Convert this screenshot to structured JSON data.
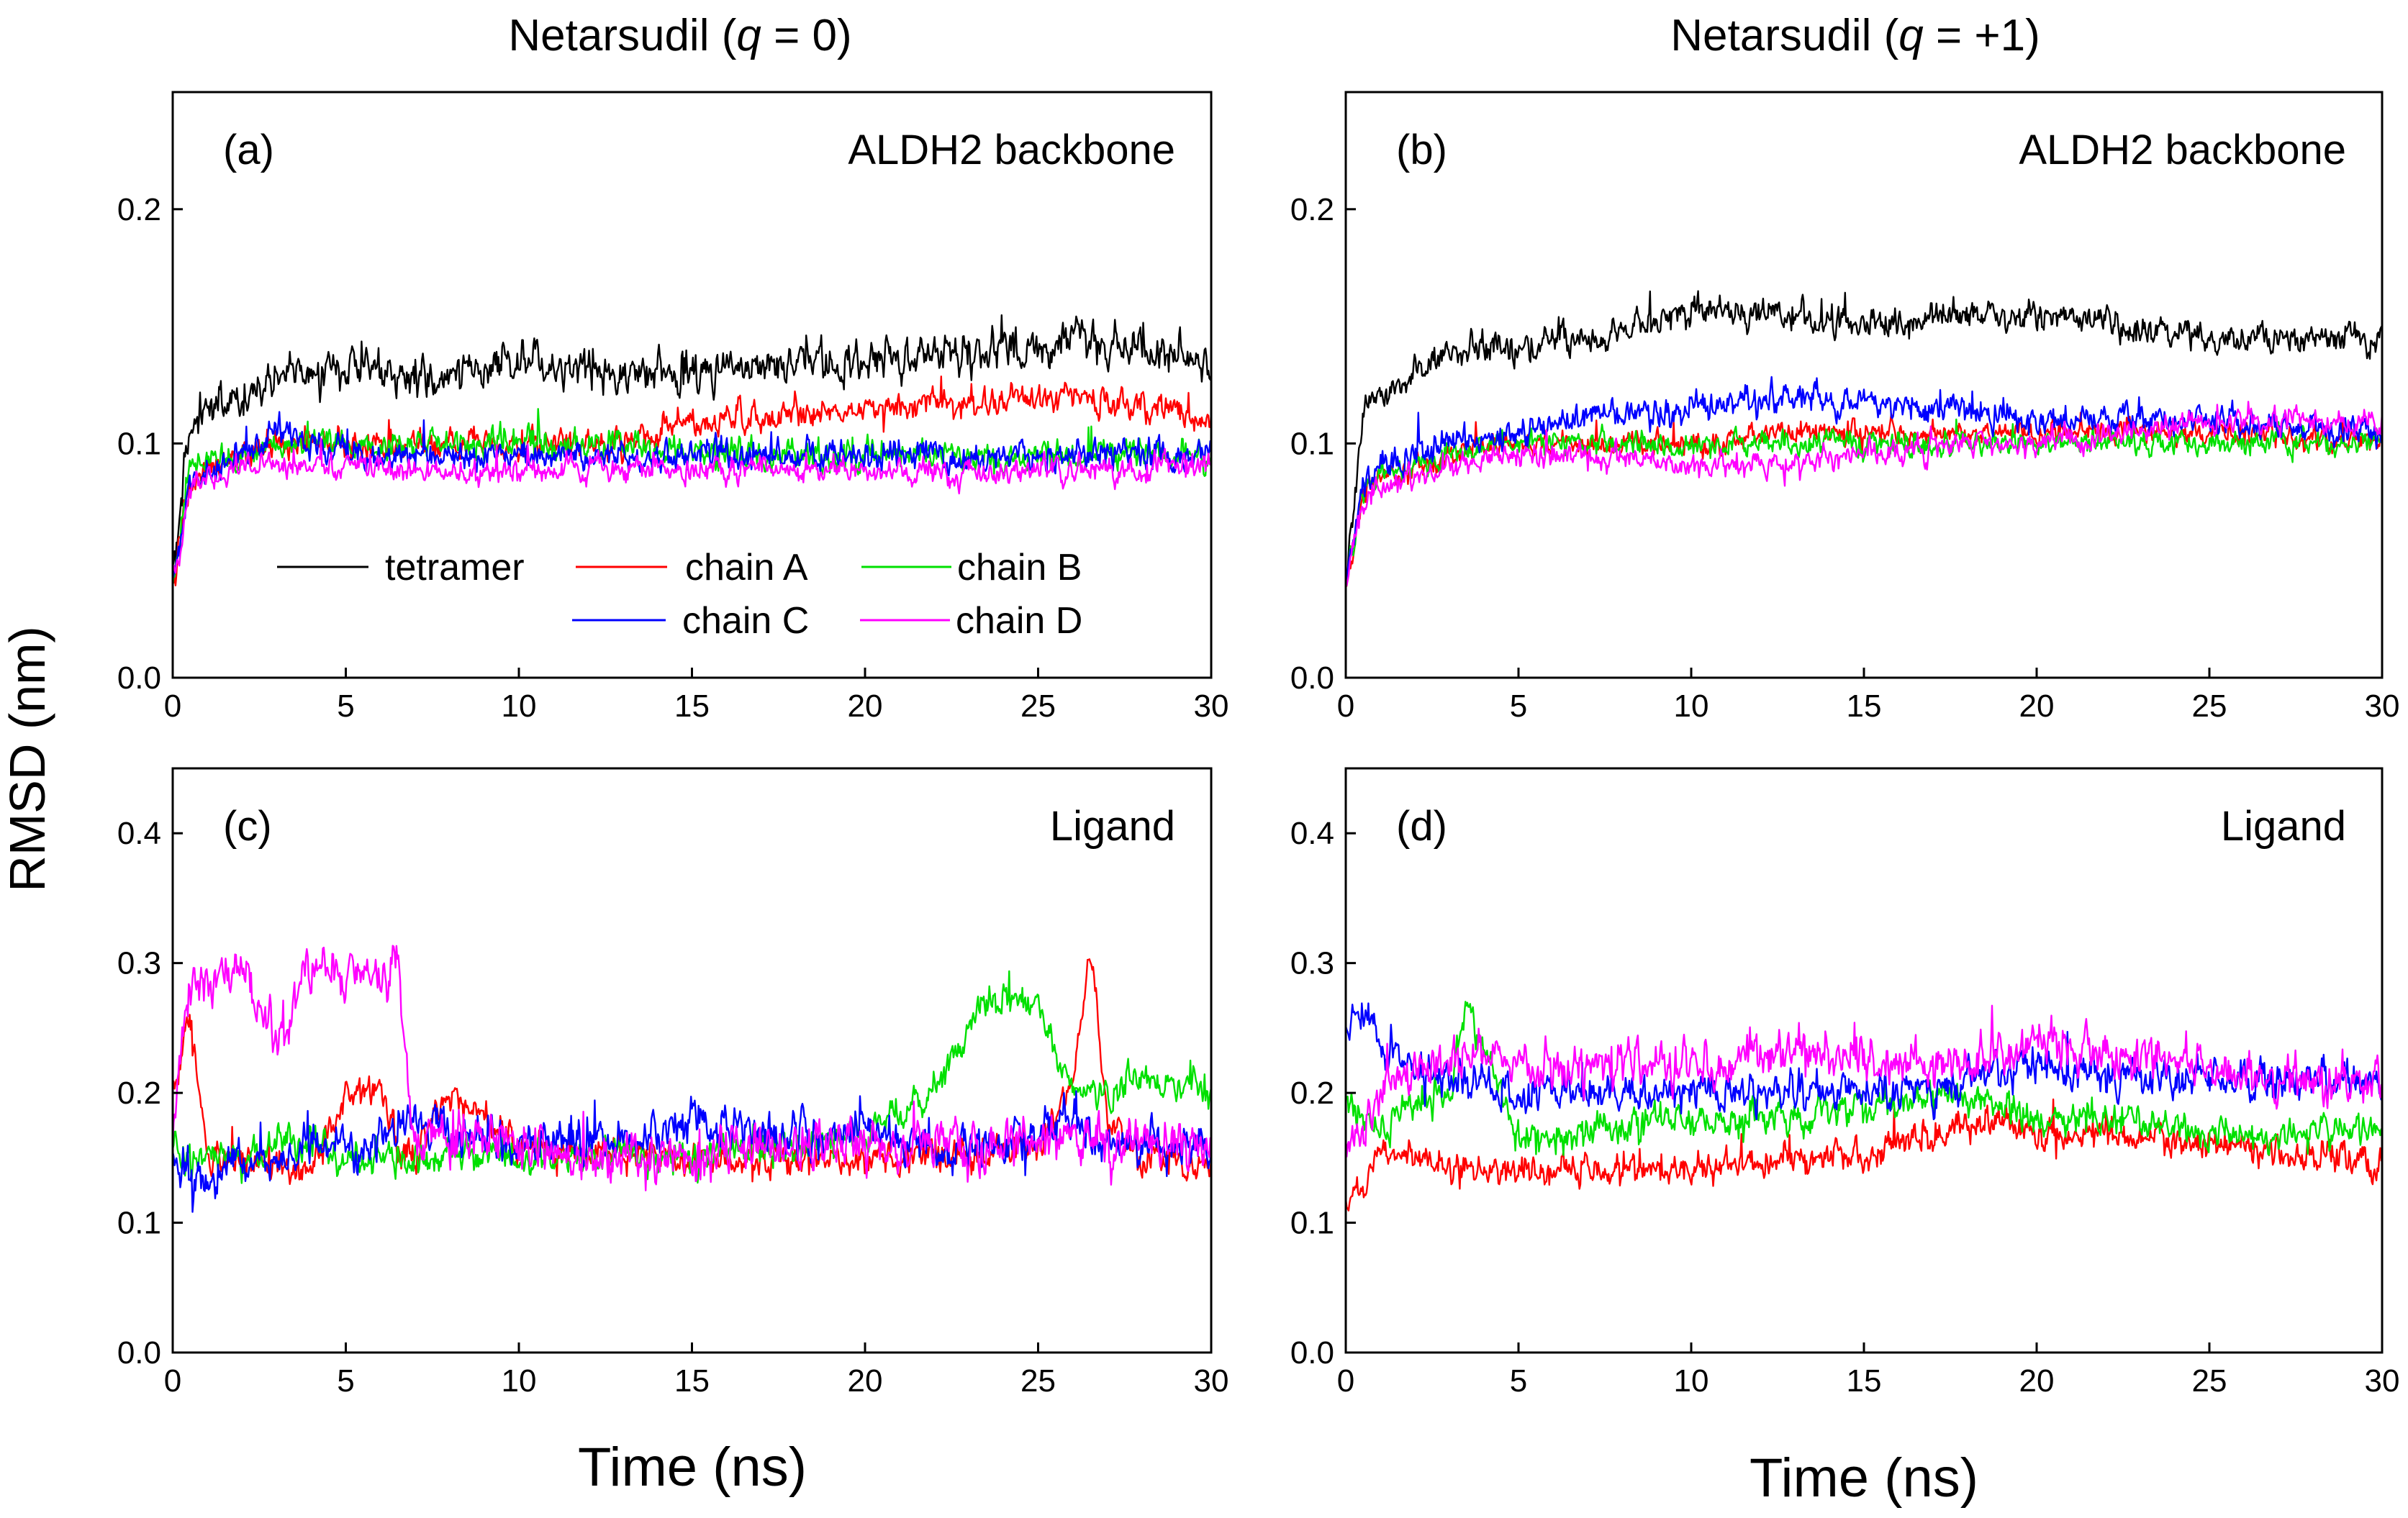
{
  "figure": {
    "col_titles": [
      {
        "prefix": "Netarsudil (",
        "var": "q",
        "suffix": " = 0)"
      },
      {
        "prefix": "Netarsudil (",
        "var": "q",
        "suffix": " = +1)"
      }
    ],
    "ylabel": "RMSD (nm)",
    "xlabel": "Time (ns)"
  },
  "legend": {
    "entries": [
      {
        "name": "tetramer",
        "color": "#000000"
      },
      {
        "name": "chain A",
        "color": "#ff0000"
      },
      {
        "name": "chain B",
        "color": "#00e000"
      },
      {
        "name": "chain C",
        "color": "#0000ff"
      },
      {
        "name": "chain D",
        "color": "#ff00ff"
      }
    ]
  },
  "chart_data": [
    {
      "type": "line",
      "panel": "(a)",
      "title": "ALDH2 backbone",
      "xlabel": "Time (ns)",
      "ylabel": "RMSD (nm)",
      "xlim": [
        0,
        30
      ],
      "ylim": [
        0,
        0.25
      ],
      "xticks": [
        0,
        5,
        10,
        15,
        20,
        25,
        30
      ],
      "yticks": [
        0.0,
        0.1,
        0.2
      ],
      "x": [
        0,
        0.5,
        1,
        2,
        3,
        5,
        7,
        10,
        13,
        15,
        20,
        25,
        26,
        30
      ],
      "series": [
        {
          "name": "tetramer",
          "color": "#000000",
          "noise": 0.008,
          "values": [
            0.04,
            0.11,
            0.115,
            0.12,
            0.13,
            0.13,
            0.128,
            0.135,
            0.13,
            0.13,
            0.135,
            0.14,
            0.145,
            0.135
          ]
        },
        {
          "name": "chain A",
          "color": "#ff0000",
          "noise": 0.006,
          "values": [
            0.04,
            0.085,
            0.09,
            0.095,
            0.1,
            0.1,
            0.1,
            0.1,
            0.1,
            0.11,
            0.115,
            0.12,
            0.12,
            0.11
          ]
        },
        {
          "name": "chain B",
          "color": "#00e000",
          "noise": 0.006,
          "values": [
            0.04,
            0.09,
            0.095,
            0.095,
            0.1,
            0.1,
            0.1,
            0.1,
            0.1,
            0.095,
            0.095,
            0.095,
            0.095,
            0.095
          ]
        },
        {
          "name": "chain C",
          "color": "#0000ff",
          "noise": 0.006,
          "values": [
            0.04,
            0.085,
            0.09,
            0.095,
            0.105,
            0.095,
            0.095,
            0.095,
            0.095,
            0.095,
            0.095,
            0.095,
            0.095,
            0.095
          ]
        },
        {
          "name": "chain D",
          "color": "#ff00ff",
          "noise": 0.005,
          "values": [
            0.04,
            0.08,
            0.085,
            0.09,
            0.09,
            0.09,
            0.088,
            0.088,
            0.09,
            0.09,
            0.088,
            0.088,
            0.088,
            0.09
          ]
        }
      ]
    },
    {
      "type": "line",
      "panel": "(b)",
      "title": "ALDH2 backbone",
      "xlabel": "Time (ns)",
      "ylabel": "RMSD (nm)",
      "xlim": [
        0,
        30
      ],
      "ylim": [
        0,
        0.25
      ],
      "xticks": [
        0,
        5,
        10,
        15,
        20,
        25,
        30
      ],
      "yticks": [
        0.0,
        0.1,
        0.2
      ],
      "x": [
        0,
        0.5,
        1,
        2,
        3,
        5,
        7,
        10,
        13,
        15,
        18,
        20,
        25,
        30
      ],
      "series": [
        {
          "name": "tetramer",
          "color": "#000000",
          "noise": 0.006,
          "values": [
            0.04,
            0.115,
            0.12,
            0.13,
            0.14,
            0.14,
            0.145,
            0.155,
            0.155,
            0.15,
            0.155,
            0.155,
            0.145,
            0.145
          ]
        },
        {
          "name": "chain A",
          "color": "#ff0000",
          "noise": 0.005,
          "values": [
            0.04,
            0.08,
            0.085,
            0.09,
            0.095,
            0.1,
            0.1,
            0.1,
            0.105,
            0.105,
            0.105,
            0.105,
            0.105,
            0.1
          ]
        },
        {
          "name": "chain B",
          "color": "#00e000",
          "noise": 0.005,
          "values": [
            0.04,
            0.08,
            0.085,
            0.09,
            0.095,
            0.1,
            0.1,
            0.1,
            0.1,
            0.1,
            0.1,
            0.1,
            0.1,
            0.1
          ]
        },
        {
          "name": "chain C",
          "color": "#0000ff",
          "noise": 0.006,
          "values": [
            0.04,
            0.085,
            0.09,
            0.095,
            0.1,
            0.105,
            0.11,
            0.115,
            0.12,
            0.115,
            0.115,
            0.11,
            0.11,
            0.105
          ]
        },
        {
          "name": "chain D",
          "color": "#ff00ff",
          "noise": 0.005,
          "values": [
            0.04,
            0.075,
            0.08,
            0.085,
            0.09,
            0.095,
            0.095,
            0.09,
            0.09,
            0.095,
            0.1,
            0.1,
            0.11,
            0.11
          ]
        }
      ]
    },
    {
      "type": "line",
      "panel": "(c)",
      "title": "Ligand",
      "xlabel": "Time (ns)",
      "ylabel": "RMSD (nm)",
      "xlim": [
        0,
        30
      ],
      "ylim": [
        0,
        0.45
      ],
      "xticks": [
        0,
        5,
        10,
        15,
        20,
        25,
        30
      ],
      "yticks": [
        0.0,
        0.1,
        0.2,
        0.3,
        0.4
      ],
      "x": [
        0,
        0.5,
        1,
        2,
        3,
        4,
        5,
        6,
        6.5,
        7,
        8,
        10,
        13,
        15,
        18,
        20,
        22,
        23.5,
        25,
        26,
        26.5,
        27,
        28,
        30
      ],
      "series": [
        {
          "name": "chain A",
          "color": "#ff0000",
          "noise": 0.012,
          "values": [
            0.2,
            0.26,
            0.15,
            0.15,
            0.14,
            0.14,
            0.2,
            0.2,
            0.16,
            0.15,
            0.2,
            0.16,
            0.15,
            0.15,
            0.15,
            0.15,
            0.15,
            0.15,
            0.16,
            0.2,
            0.31,
            0.18,
            0.15,
            0.14
          ]
        },
        {
          "name": "chain B",
          "color": "#00e000",
          "noise": 0.012,
          "values": [
            0.16,
            0.15,
            0.15,
            0.15,
            0.16,
            0.16,
            0.15,
            0.15,
            0.15,
            0.15,
            0.15,
            0.15,
            0.15,
            0.15,
            0.16,
            0.17,
            0.2,
            0.27,
            0.27,
            0.2,
            0.2,
            0.2,
            0.21,
            0.2
          ]
        },
        {
          "name": "chain C",
          "color": "#0000ff",
          "noise": 0.016,
          "values": [
            0.15,
            0.14,
            0.13,
            0.15,
            0.15,
            0.16,
            0.16,
            0.16,
            0.17,
            0.18,
            0.17,
            0.16,
            0.16,
            0.18,
            0.17,
            0.17,
            0.16,
            0.16,
            0.17,
            0.18,
            0.17,
            0.16,
            0.16,
            0.16
          ]
        },
        {
          "name": "chain D",
          "color": "#ff00ff",
          "noise": 0.018,
          "values": [
            0.16,
            0.29,
            0.28,
            0.3,
            0.24,
            0.3,
            0.29,
            0.29,
            0.3,
            0.15,
            0.17,
            0.16,
            0.15,
            0.15,
            0.16,
            0.16,
            0.16,
            0.16,
            0.16,
            0.17,
            0.17,
            0.16,
            0.16,
            0.16
          ]
        }
      ]
    },
    {
      "type": "line",
      "panel": "(d)",
      "title": "Ligand",
      "xlabel": "Time (ns)",
      "ylabel": "RMSD (nm)",
      "xlim": [
        0,
        30
      ],
      "ylim": [
        0,
        0.45
      ],
      "xticks": [
        0,
        5,
        10,
        15,
        20,
        25,
        30
      ],
      "yticks": [
        0.0,
        0.1,
        0.2,
        0.3,
        0.4
      ],
      "x": [
        0,
        0.5,
        1,
        2,
        3,
        3.5,
        5,
        7,
        10,
        13,
        15,
        17,
        19,
        20,
        22,
        25,
        28,
        30
      ],
      "series": [
        {
          "name": "chain A",
          "color": "#ff0000",
          "noise": 0.012,
          "values": [
            0.12,
            0.13,
            0.15,
            0.15,
            0.14,
            0.14,
            0.14,
            0.14,
            0.14,
            0.15,
            0.15,
            0.17,
            0.18,
            0.17,
            0.17,
            0.16,
            0.15,
            0.15
          ]
        },
        {
          "name": "chain B",
          "color": "#00e000",
          "noise": 0.012,
          "values": [
            0.2,
            0.18,
            0.17,
            0.2,
            0.2,
            0.27,
            0.16,
            0.17,
            0.18,
            0.18,
            0.19,
            0.2,
            0.19,
            0.18,
            0.18,
            0.17,
            0.17,
            0.17
          ]
        },
        {
          "name": "chain C",
          "color": "#0000ff",
          "noise": 0.014,
          "values": [
            0.25,
            0.27,
            0.23,
            0.22,
            0.21,
            0.21,
            0.2,
            0.2,
            0.2,
            0.2,
            0.2,
            0.2,
            0.22,
            0.22,
            0.21,
            0.21,
            0.21,
            0.21
          ]
        },
        {
          "name": "chain D",
          "color": "#ff00ff",
          "noise": 0.016,
          "values": [
            0.16,
            0.17,
            0.2,
            0.22,
            0.22,
            0.23,
            0.22,
            0.22,
            0.22,
            0.23,
            0.23,
            0.22,
            0.23,
            0.24,
            0.23,
            0.22,
            0.21,
            0.21
          ]
        }
      ]
    }
  ]
}
